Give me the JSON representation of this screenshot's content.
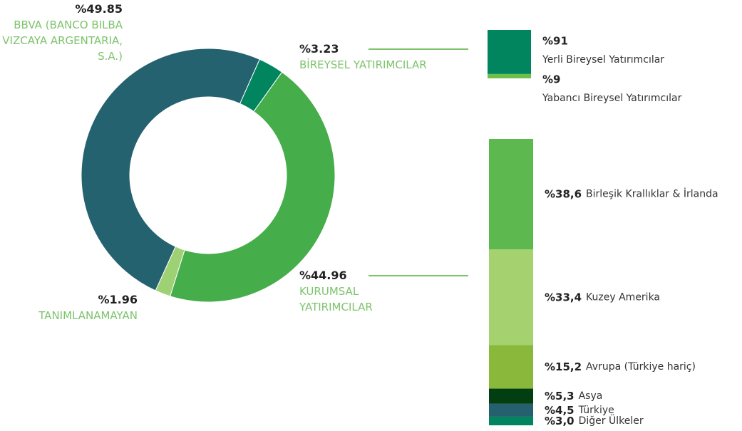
{
  "chart_data": [
    {
      "type": "donut",
      "categories": [
        "BBVA (BANCO BILBA VIZCAYA ARGENTARIA, S.A.)",
        "BİREYSEL YATIRIMCILAR",
        "KURUMSAL YATIRIMCILAR",
        "TANIMLANAMAYAN"
      ],
      "values": [
        49.85,
        3.23,
        44.96,
        1.96
      ],
      "value_labels": [
        "%49.85",
        "%3.23",
        "%44.96",
        "%1.96"
      ],
      "colors": [
        "#24626f",
        "#00855f",
        "#45ad4a",
        "#9ed173"
      ]
    },
    {
      "type": "stacked-bar",
      "categories": [
        "Yerli Bireysel Yatırımcılar",
        "Yabancı Bireysel Yatırımcılar"
      ],
      "values": [
        91,
        9
      ],
      "value_labels": [
        "%91",
        "%9"
      ],
      "colors": [
        "#00855f",
        "#6cc04a"
      ]
    },
    {
      "type": "stacked-bar",
      "categories": [
        "Birleşik Krallıklar & İrlanda",
        "Kuzey Amerika",
        "Avrupa (Türkiye hariç)",
        "Asya",
        "Türkiye",
        "Diğer Ülkeler"
      ],
      "values": [
        38.6,
        33.4,
        15.2,
        5.3,
        4.5,
        3.0
      ],
      "value_labels": [
        "%38,6",
        "%33,4",
        "%15,2",
        "%5,3",
        "%4,5",
        "%3,0"
      ],
      "colors": [
        "#5cb84f",
        "#a5d16f",
        "#89b83a",
        "#033d12",
        "#24606e",
        "#00855f"
      ]
    }
  ]
}
